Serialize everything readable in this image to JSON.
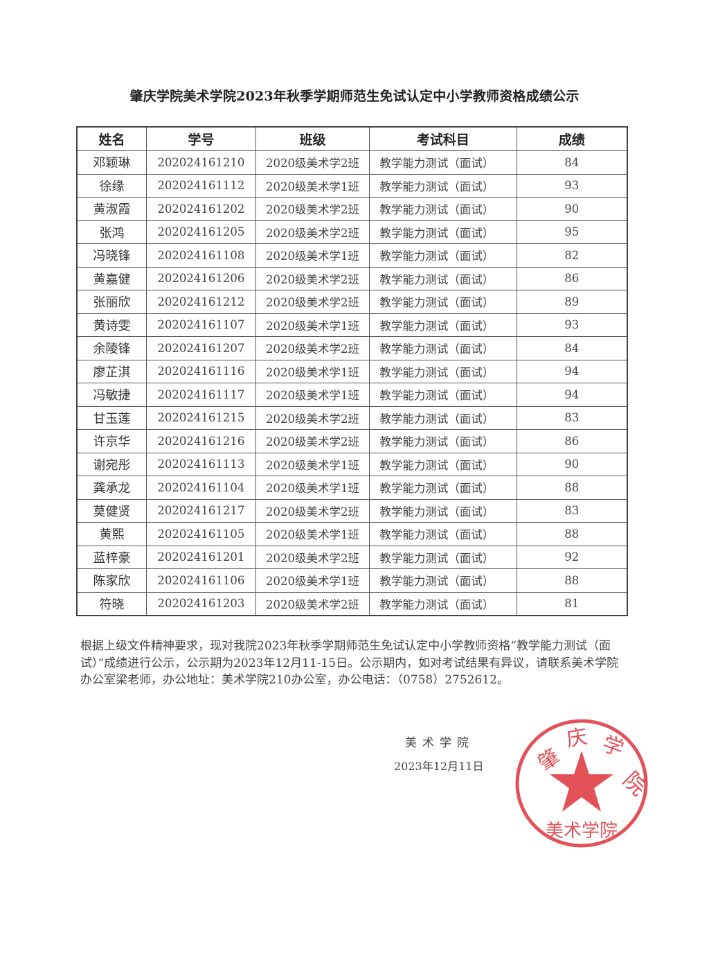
{
  "title": "肇庆学院美术学院2023年秋季学期师范生免试认定中小学教师资格成绩公示",
  "table": {
    "headers": [
      "姓名",
      "学号",
      "班级",
      "考试科目",
      "成绩"
    ],
    "rows": [
      [
        "邓颖琳",
        "202024161210",
        "2020级美术学2班",
        "教学能力测试（面试）",
        "84"
      ],
      [
        "徐缘",
        "202024161112",
        "2020级美术学1班",
        "教学能力测试（面试）",
        "93"
      ],
      [
        "黄淑霞",
        "202024161202",
        "2020级美术学2班",
        "教学能力测试（面试）",
        "90"
      ],
      [
        "张鸿",
        "202024161205",
        "2020级美术学2班",
        "教学能力测试（面试）",
        "95"
      ],
      [
        "冯晓锋",
        "202024161108",
        "2020级美术学1班",
        "教学能力测试（面试）",
        "82"
      ],
      [
        "黄嘉健",
        "202024161206",
        "2020级美术学2班",
        "教学能力测试（面试）",
        "86"
      ],
      [
        "张丽欣",
        "202024161212",
        "2020级美术学2班",
        "教学能力测试（面试）",
        "89"
      ],
      [
        "黄诗雯",
        "202024161107",
        "2020级美术学1班",
        "教学能力测试（面试）",
        "93"
      ],
      [
        "余陵锋",
        "202024161207",
        "2020级美术学2班",
        "教学能力测试（面试）",
        "84"
      ],
      [
        "廖芷淇",
        "202024161116",
        "2020级美术学1班",
        "教学能力测试（面试）",
        "94"
      ],
      [
        "冯敏捷",
        "202024161117",
        "2020级美术学1班",
        "教学能力测试（面试）",
        "94"
      ],
      [
        "甘玉莲",
        "202024161215",
        "2020级美术学2班",
        "教学能力测试（面试）",
        "83"
      ],
      [
        "许京华",
        "202024161216",
        "2020级美术学2班",
        "教学能力测试（面试）",
        "86"
      ],
      [
        "谢宛彤",
        "202024161113",
        "2020级美术学1班",
        "教学能力测试（面试）",
        "90"
      ],
      [
        "龚承龙",
        "202024161104",
        "2020级美术学1班",
        "教学能力测试（面试）",
        "88"
      ],
      [
        "莫健贤",
        "202024161217",
        "2020级美术学2班",
        "教学能力测试（面试）",
        "83"
      ],
      [
        "黄熙",
        "202024161105",
        "2020级美术学1班",
        "教学能力测试（面试）",
        "88"
      ],
      [
        "蓝梓豪",
        "202024161201",
        "2020级美术学2班",
        "教学能力测试（面试）",
        "92"
      ],
      [
        "陈家欣",
        "202024161106",
        "2020级美术学1班",
        "教学能力测试（面试）",
        "88"
      ],
      [
        "符晓",
        "202024161203",
        "2020级美术学2班",
        "教学能力测试（面试）",
        "81"
      ]
    ]
  },
  "notice": "根据上级文件精神要求，现对我院2023年秋季学期师范生免试认定中小学教师资格“教学能力测试（面试）”成绩进行公示，公示期为2023年12月11-15日。公示期内，如对考试结果有异议，请联系美术学院办公室梁老师，办公地址：美术学院210办公室，办公电话：（0758）2752612。",
  "signature": {
    "org": "美术学院",
    "date": "2023年12月11日"
  },
  "stamp": {
    "outer_text": "肇庆学院",
    "inner_text": "美术学院",
    "color": "#e0323c"
  }
}
